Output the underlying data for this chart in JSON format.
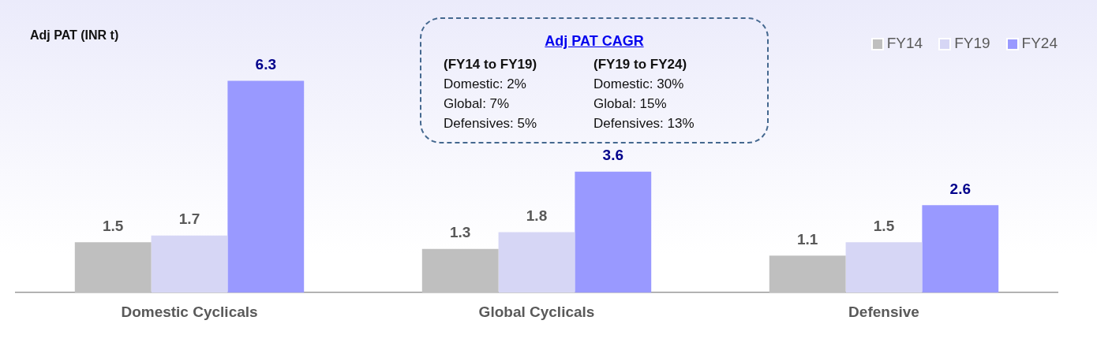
{
  "chart_data": {
    "type": "bar",
    "ylabel": "Adj PAT (INR t)",
    "categories": [
      "Domestic Cyclicals",
      "Global Cyclicals",
      "Defensive"
    ],
    "series": [
      {
        "name": "FY14",
        "color": "#bfbfbf",
        "values": [
          1.5,
          1.3,
          1.1
        ]
      },
      {
        "name": "FY19",
        "color": "#d6d6f5",
        "values": [
          1.7,
          1.8,
          1.5
        ]
      },
      {
        "name": "FY24",
        "color": "#9999ff",
        "values": [
          6.3,
          3.6,
          2.6
        ]
      }
    ],
    "data_labels": true,
    "legend": "top right",
    "grid": false,
    "annotations": [
      "Adj PAT CAGR",
      "(FY14 to FY19)",
      "(FY19 to FY24)",
      "Domestic: 2%",
      "Domestic: 30%",
      "Global: 7%",
      "Global: 15%",
      "Defensives: 5%",
      "Defensives: 13%"
    ]
  }
}
